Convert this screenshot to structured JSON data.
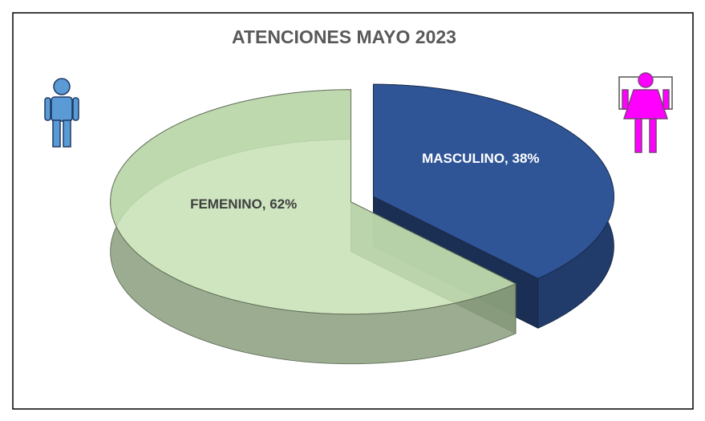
{
  "chart_data": {
    "type": "pie",
    "title": "ATENCIONES MAYO 2023",
    "categories": [
      "MASCULINO",
      "FEMENINO"
    ],
    "values": [
      38,
      62
    ],
    "value_labels": [
      "MASCULINO, 38%",
      "FEMENINO, 62%"
    ],
    "colors": [
      "#2f5597",
      "#c5e0b4"
    ]
  }
}
